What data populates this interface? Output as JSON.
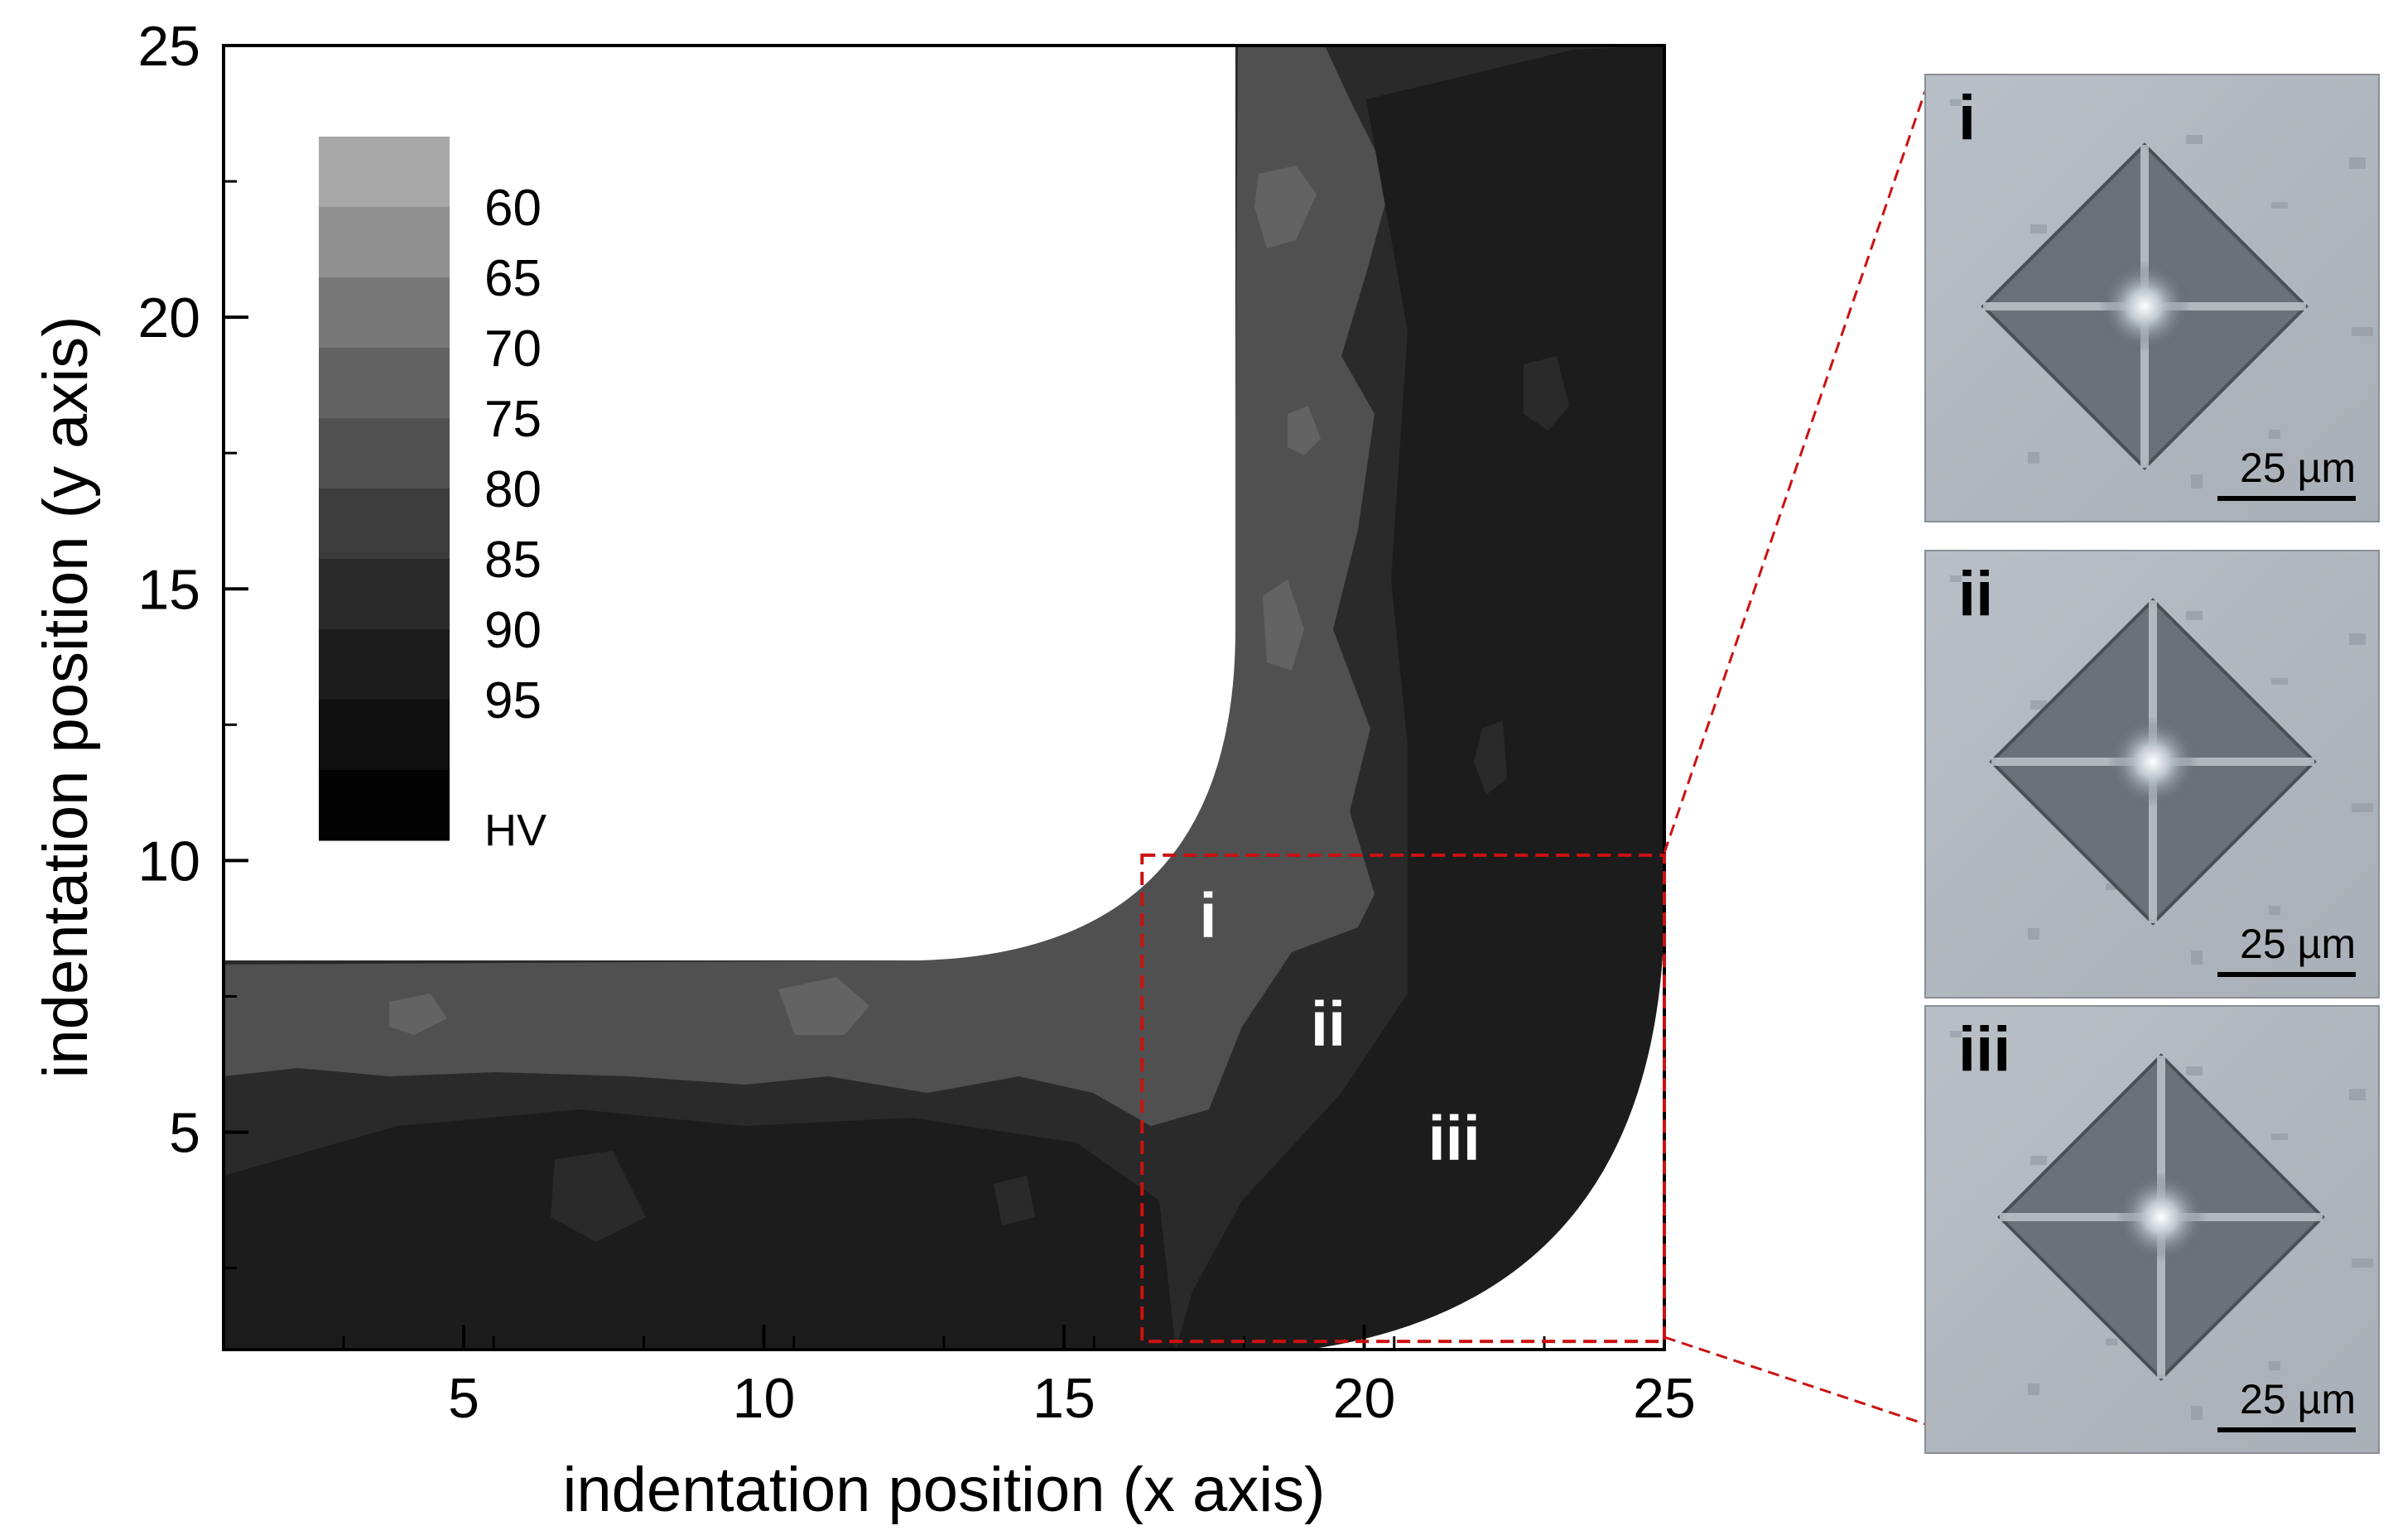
{
  "chart_data": {
    "type": "heatmap",
    "xlabel": "indentation position (x axis)",
    "ylabel": "indentation position (y axis)",
    "xlim": [
      1,
      25
    ],
    "ylim": [
      1,
      25
    ],
    "x_ticks": [
      5,
      10,
      15,
      20,
      25
    ],
    "y_ticks": [
      5,
      10,
      15,
      20,
      25
    ],
    "colorbar": {
      "unit": "HV",
      "tick_labels": [
        "60",
        "65",
        "70",
        "75",
        "80",
        "85",
        "90",
        "95"
      ],
      "levels": [
        {
          "lower": 55,
          "upper": 60,
          "color": "#a8a8a8"
        },
        {
          "lower": 60,
          "upper": 65,
          "color": "#909090"
        },
        {
          "lower": 65,
          "upper": 70,
          "color": "#787878"
        },
        {
          "lower": 70,
          "upper": 75,
          "color": "#636363"
        },
        {
          "lower": 75,
          "upper": 80,
          "color": "#505050"
        },
        {
          "lower": 80,
          "upper": 85,
          "color": "#3c3c3c"
        },
        {
          "lower": 85,
          "upper": 90,
          "color": "#2a2a2a"
        },
        {
          "lower": 90,
          "upper": 95,
          "color": "#1c1c1c"
        },
        {
          "lower": 95,
          "upper": 100,
          "color": "#0f0f0f"
        },
        {
          "lower": 100,
          "upper": 105,
          "color": "#030303"
        }
      ]
    },
    "approx_hardness_HV": {
      "inner_bend_band": 78,
      "outer_region": 88,
      "local_softer_spots": 72
    },
    "inset_region": {
      "x": [
        16.3,
        25
      ],
      "y": [
        1.15,
        10.1
      ],
      "color": "#cc1111"
    },
    "point_labels": [
      {
        "text": "i",
        "x": 17.4,
        "y": 8.6
      },
      {
        "text": "ii",
        "x": 19.4,
        "y": 6.6
      },
      {
        "text": "iii",
        "x": 21.5,
        "y": 4.5
      }
    ]
  },
  "micrographs": [
    {
      "label": "i",
      "scale_bar": "25 µm"
    },
    {
      "label": "ii",
      "scale_bar": "25 µm"
    },
    {
      "label": "iii",
      "scale_bar": "25 µm"
    }
  ]
}
